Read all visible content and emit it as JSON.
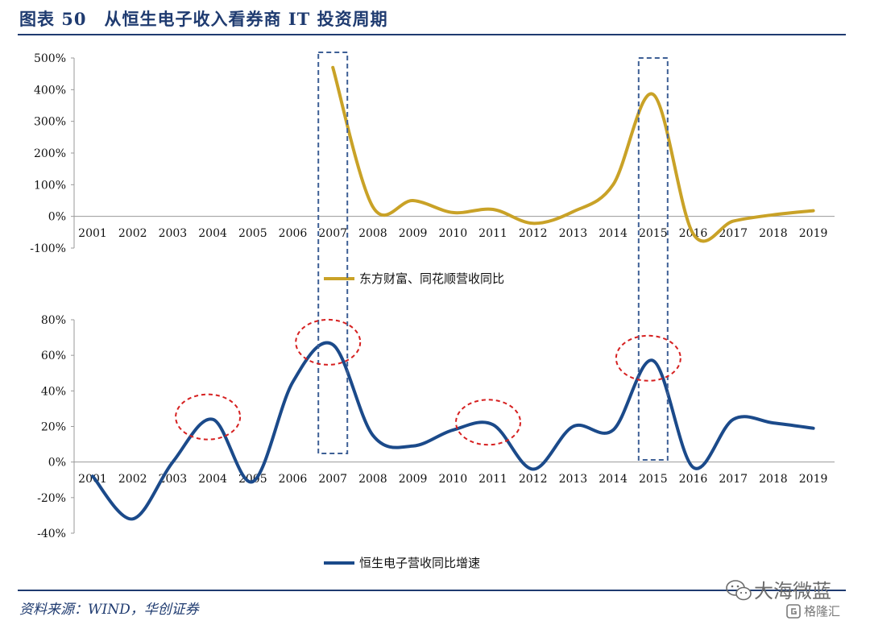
{
  "figure": {
    "title": "图表 50　从恒生电子收入看券商 IT 投资周期",
    "source": "资料来源：WIND，华创证券"
  },
  "watermark": {
    "name": "大海微蓝",
    "sub": "格隆汇"
  },
  "colors": {
    "header": "#1f3b70",
    "series_top": "#c9a227",
    "series_bottom": "#1b4a8a",
    "highlight_box": "#3d5f95",
    "highlight_ellipse": "#d62020"
  },
  "chart_data": [
    {
      "type": "line",
      "x": [
        "2001",
        "2002",
        "2003",
        "2004",
        "2005",
        "2006",
        "2007",
        "2008",
        "2009",
        "2010",
        "2011",
        "2012",
        "2013",
        "2014",
        "2015",
        "2016",
        "2017",
        "2018",
        "2019"
      ],
      "series": [
        {
          "name": "东方财富、同花顺营收同比",
          "values": [
            null,
            null,
            null,
            null,
            null,
            null,
            470,
            30,
            50,
            12,
            22,
            -22,
            15,
            100,
            385,
            -55,
            -15,
            5,
            18
          ],
          "unit": "%"
        }
      ],
      "yticks": [
        "500%",
        "400%",
        "300%",
        "200%",
        "100%",
        "0%",
        "-100%"
      ],
      "ylim": [
        -100,
        500
      ],
      "highlight_years": [
        "2007",
        "2015"
      ],
      "legend": "bottom-center"
    },
    {
      "type": "line",
      "x": [
        "2001",
        "2002",
        "2003",
        "2004",
        "2005",
        "2006",
        "2007",
        "2008",
        "2009",
        "2010",
        "2011",
        "2012",
        "2013",
        "2014",
        "2015",
        "2016",
        "2017",
        "2018",
        "2019"
      ],
      "series": [
        {
          "name": "恒生电子营收同比增速",
          "values": [
            -8,
            -32,
            0,
            24,
            -11,
            45,
            66,
            15,
            9,
            18,
            21,
            -4,
            20,
            18,
            57,
            -3,
            24,
            22,
            19
          ],
          "unit": "%"
        }
      ],
      "yticks": [
        "80%",
        "60%",
        "40%",
        "20%",
        "0%",
        "-20%",
        "-40%"
      ],
      "ylim": [
        -40,
        80
      ],
      "highlight_years": [
        "2007",
        "2015"
      ],
      "circled_years": [
        "2004",
        "2007",
        "2011",
        "2015"
      ],
      "legend": "bottom-center"
    }
  ]
}
